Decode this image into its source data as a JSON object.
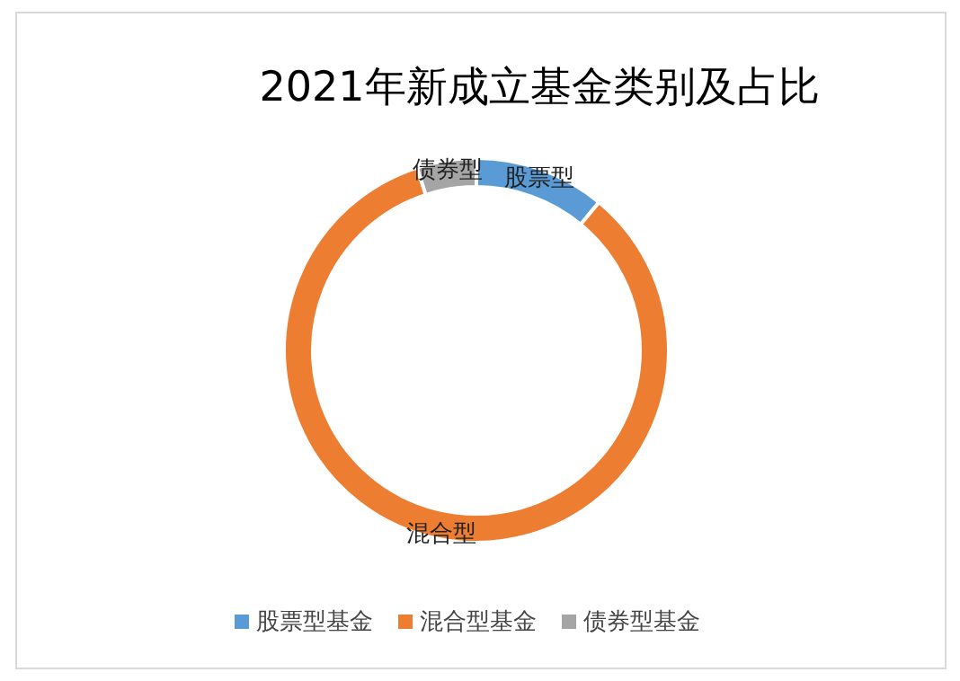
{
  "chart_data": {
    "type": "donut",
    "title": "2021年新成立基金类别及占比",
    "categories": [
      "股票型基金",
      "混合型基金",
      "债券型基金"
    ],
    "values": [
      11,
      84,
      5
    ],
    "colors": [
      "#5b9bd5",
      "#ed7d31",
      "#a5a5a5"
    ],
    "annotations": [
      {
        "text": "股票型",
        "x": "股票型基金"
      },
      {
        "text": "混合型",
        "x": "混合型基金"
      },
      {
        "text": "债券型",
        "x": "债券型基金"
      }
    ],
    "legend": "bottom"
  }
}
